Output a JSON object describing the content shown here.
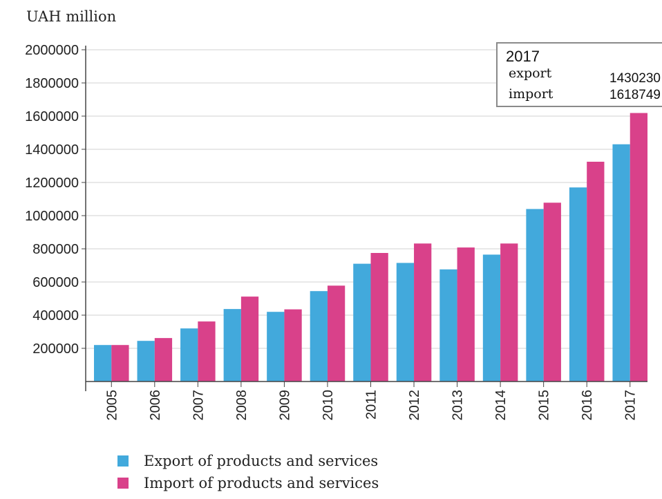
{
  "colors": {
    "export": "#42a9dc",
    "import": "#d9418a",
    "grid": "#e8e8e8",
    "axis": "#444444"
  },
  "chart_data": {
    "type": "bar",
    "ylabel": "UAH million",
    "ylim": [
      0,
      2000000
    ],
    "yticks": [
      "200000",
      "400000",
      "600000",
      "800000",
      "1000000",
      "1200000",
      "1400000",
      "1600000",
      "1800000",
      "2000000"
    ],
    "grid": true,
    "legend_position": "bottom",
    "categories": [
      "2005",
      "2006",
      "2007",
      "2008",
      "2009",
      "2010",
      "2011",
      "2012",
      "2013",
      "2014",
      "2015",
      "2016",
      "2017"
    ],
    "series": [
      {
        "name": "Export of products and services",
        "values": [
          220000,
          245000,
          320000,
          437000,
          420000,
          545000,
          710000,
          715000,
          676000,
          765000,
          1040000,
          1170000,
          1430230
        ]
      },
      {
        "name": "Import of products and services",
        "values": [
          220000,
          262000,
          362000,
          512000,
          435000,
          578000,
          775000,
          832000,
          808000,
          832000,
          1078000,
          1325000,
          1618749
        ]
      }
    ],
    "tooltip": {
      "year": "2017",
      "rows": [
        {
          "label": "export",
          "value": "1430230"
        },
        {
          "label": "import",
          "value": "1618749"
        }
      ]
    }
  }
}
